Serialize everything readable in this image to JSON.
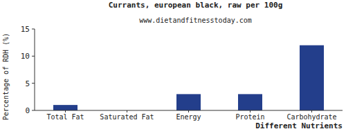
{
  "chart_data": {
    "type": "bar",
    "title": "Currants, european black, raw per 100g",
    "subtitle": "www.dietandfitnesstoday.com",
    "x_label": "Different Nutrients",
    "y_label": "Percentage of RDH (%)",
    "categories": [
      "Total Fat",
      "Saturated Fat",
      "Energy",
      "Protein",
      "Carbohydrate"
    ],
    "values": [
      1,
      0,
      3,
      3,
      12
    ],
    "color": "#233e8b",
    "ylim": [
      0,
      15
    ],
    "yticks": [
      0,
      5,
      10,
      15
    ],
    "grid": false
  }
}
